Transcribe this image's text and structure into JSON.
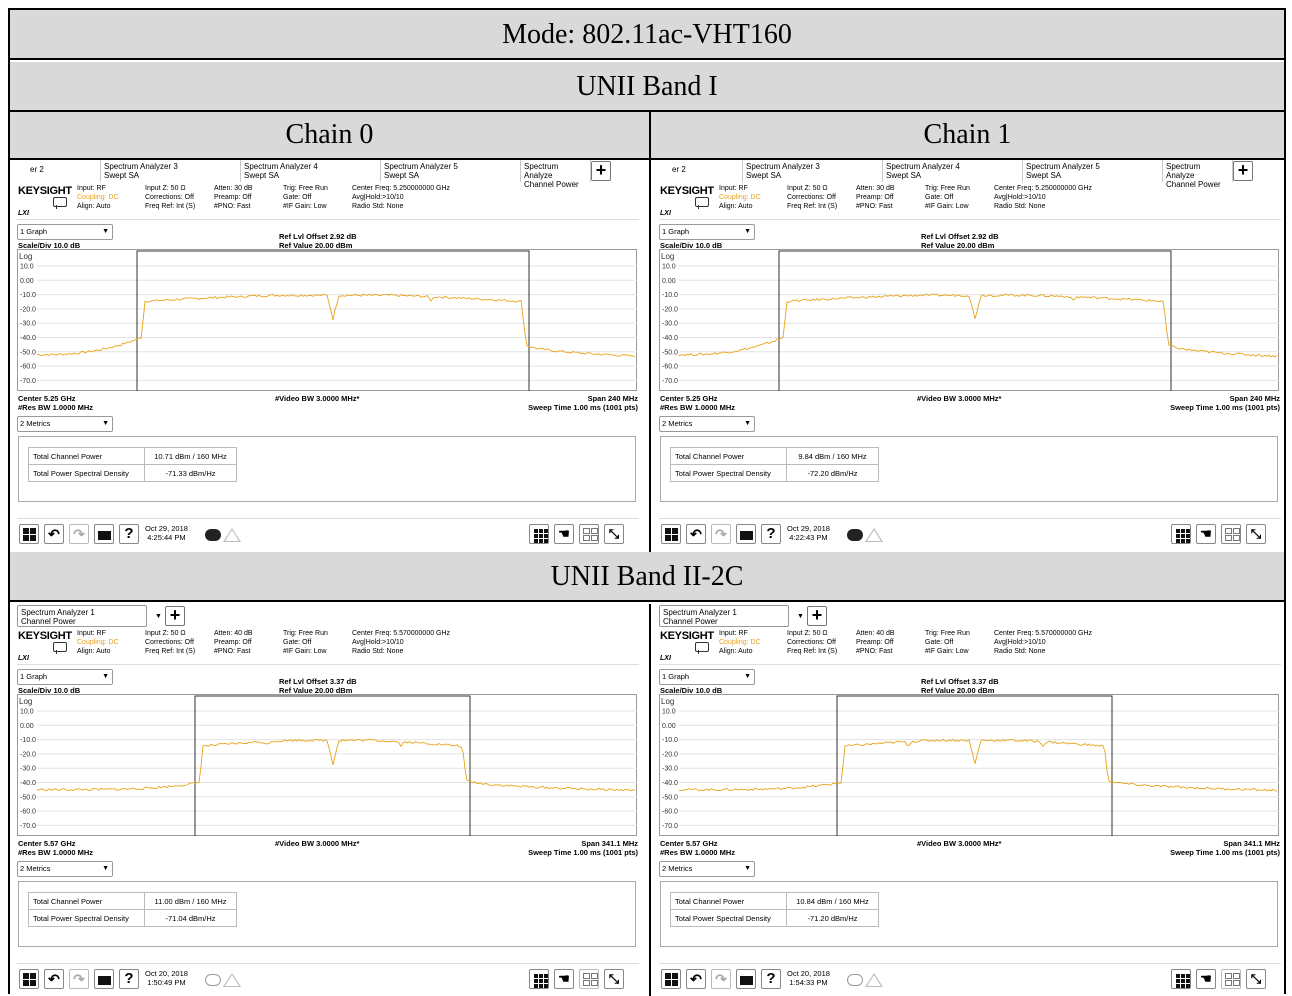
{
  "page": {
    "mode_title": "Mode: 802.11ac-VHT160",
    "band1_title": "UNII Band I",
    "band2_title": "UNII Band II-2C",
    "col_headers": [
      "Chain 0",
      "Chain 1"
    ]
  },
  "common": {
    "brand": "KEYSIGHT",
    "lxi": "LXI",
    "tab_partial": "er 2",
    "tab_sa3": [
      "Spectrum Analyzer 3",
      "Swept SA"
    ],
    "tab_sa4": [
      "Spectrum Analyzer 4",
      "Swept SA"
    ],
    "tab_sa5": [
      "Spectrum Analyzer 5",
      "Swept SA"
    ],
    "tab_sa_cp": [
      "Spectrum Analyze",
      "Channel Power"
    ],
    "tab_sa1": [
      "Spectrum Analyzer 1",
      "Channel Power"
    ],
    "add_tab": "+",
    "input": "Input: RF",
    "coupling": "Coupling: DC",
    "align": "Align: Auto",
    "input_z": "Input Z: 50 Ω",
    "corrections": "Corrections: Off",
    "freq_ref": "Freq Ref: Int (S)",
    "preamp": "Preamp: Off",
    "pno": "#PNO: Fast",
    "trig": "Trig: Free Run",
    "gate": "Gate: Off",
    "if_gain": "#IF Gain: Low",
    "avg_hold": "Avg|Hold:>10/10",
    "radio_std": "Radio Std: None",
    "graph_dd": "1 Graph",
    "metrics_dd": "2 Metrics",
    "scale_div": "Scale/Div 10.0 dB",
    "log": "Log",
    "ref_value": "Ref Value 20.00 dBm",
    "video_bw": "#Video BW 3.0000 MHz*",
    "res_bw": "#Res BW 1.0000 MHz",
    "sweep_time": "Sweep Time 1.00 ms (1001 pts)",
    "tcp_label": "Total Channel Power",
    "psd_label": "Total Power Spectral Density",
    "y_ticks": [
      "10.0",
      "0.00",
      "-10.0",
      "-20.0",
      "-30.0",
      "-40.0",
      "-50.0",
      "-60.0",
      "-70.0"
    ],
    "help_glyph": "?",
    "undo_glyph": "↶",
    "redo_glyph": "↷",
    "shrink_glyph": "⤡",
    "hand_glyph": "☚"
  },
  "panels": [
    {
      "atten": "Atten: 30 dB",
      "center_freq": "Center Freq: 5.250000000 GHz",
      "ref_offset": "Ref Lvl Offset 2.92 dB",
      "center": "Center 5.25 GHz",
      "span": "Span 240 MHz",
      "tcp": "10.71 dBm / 160 MHz",
      "psd": "-71.33 dBm/Hz",
      "date": "Oct 29, 2018",
      "time": "4:25:44 PM"
    },
    {
      "atten": "Atten: 30 dB",
      "center_freq": "Center Freq: 5.250000000 GHz",
      "ref_offset": "Ref Lvl Offset 2.92 dB",
      "center": "Center 5.25 GHz",
      "span": "Span 240 MHz",
      "tcp": "9.84 dBm / 160 MHz",
      "psd": "-72.20 dBm/Hz",
      "date": "Oct 29, 2018",
      "time": "4:22:43 PM"
    },
    {
      "atten": "Atten: 40 dB",
      "center_freq": "Center Freq: 5.570000000 GHz",
      "ref_offset": "Ref Lvl Offset 3.37 dB",
      "center": "Center 5.57 GHz",
      "span": "Span 341.1 MHz",
      "tcp": "11.00 dBm / 160 MHz",
      "psd": "-71.04 dBm/Hz",
      "date": "Oct 20, 2018",
      "time": "1:50:49 PM"
    },
    {
      "atten": "Atten: 40 dB",
      "center_freq": "Center Freq: 5.570000000 GHz",
      "ref_offset": "Ref Lvl Offset 3.37 dB",
      "center": "Center 5.57 GHz",
      "span": "Span 341.1 MHz",
      "tcp": "10.84 dBm / 160 MHz",
      "psd": "-71.20 dBm/Hz",
      "date": "Oct 20, 2018",
      "time": "1:54:33 PM"
    }
  ],
  "colors": {
    "trace": "#e8a317",
    "header_bg": "#d9d9d9",
    "coupling_text": "#e8a020"
  }
}
